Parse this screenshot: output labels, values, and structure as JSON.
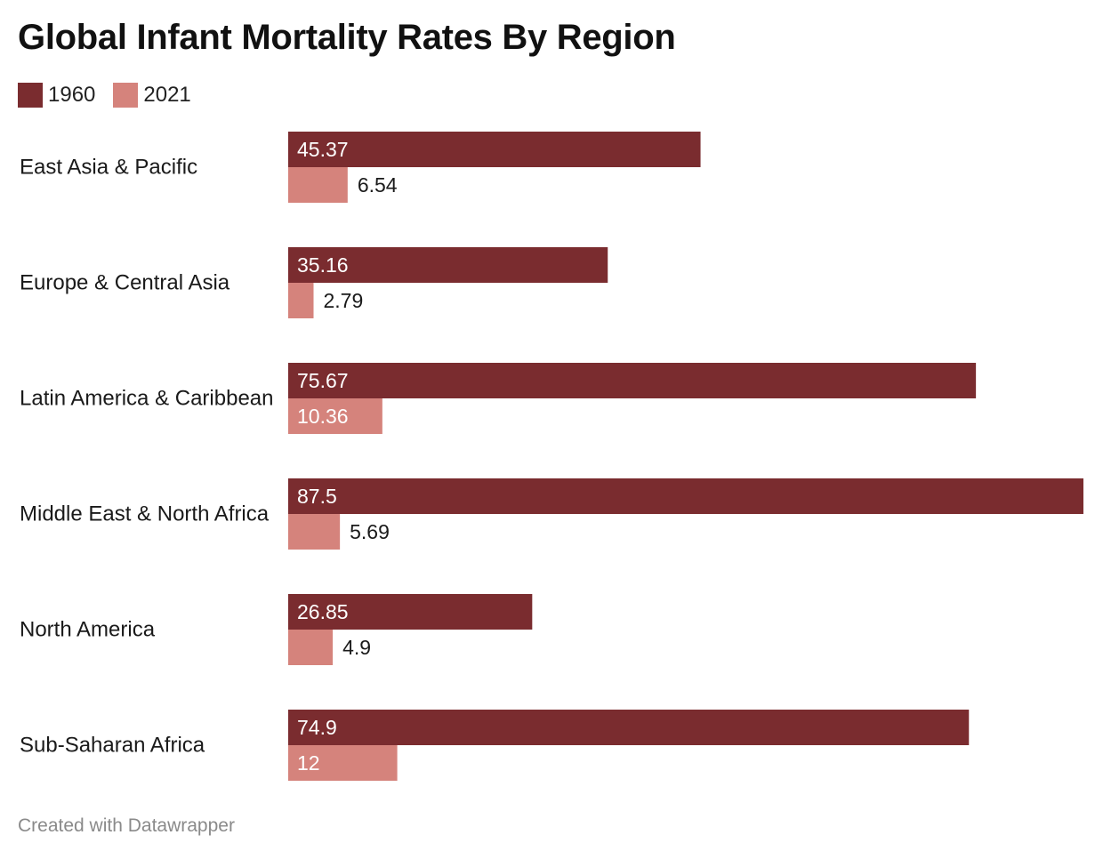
{
  "chart_data": {
    "type": "bar",
    "orientation": "horizontal",
    "title": "Global Infant Mortality Rates By Region",
    "categories": [
      "East Asia & Pacific",
      "Europe & Central Asia",
      "Latin America & Caribbean",
      "Middle East & North Africa",
      "North America",
      "Sub-Saharan Africa"
    ],
    "series": [
      {
        "name": "1960",
        "color": "#7a2c2f",
        "values": [
          45.37,
          35.16,
          75.67,
          87.5,
          26.85,
          74.9
        ],
        "labels": [
          "45.37",
          "35.16",
          "75.67",
          "87.5",
          "26.85",
          "74.9"
        ]
      },
      {
        "name": "2021",
        "color": "#d5837c",
        "values": [
          6.54,
          2.79,
          10.36,
          5.69,
          4.9,
          12
        ],
        "labels": [
          "6.54",
          "2.79",
          "10.36",
          "5.69",
          "4.9",
          "12"
        ]
      }
    ],
    "xlim": [
      0,
      87.5
    ],
    "grid": false,
    "legend_position": "top-left"
  },
  "footer": "Created with Datawrapper"
}
